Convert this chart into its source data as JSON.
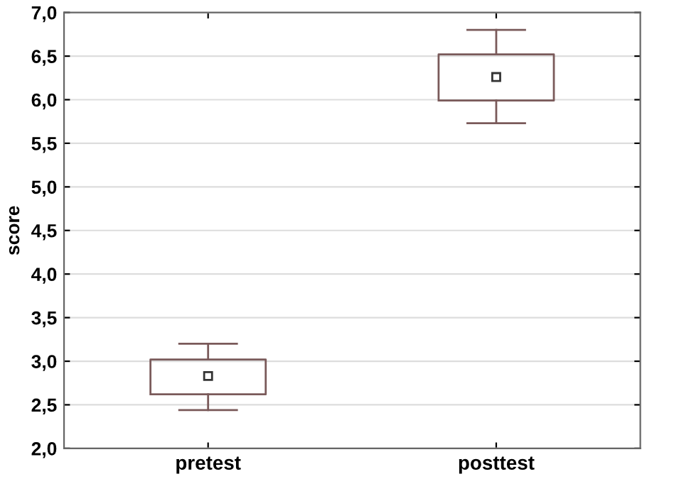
{
  "chart_data": {
    "type": "box",
    "ylabel": "score",
    "categories": [
      "pretest",
      "posttest"
    ],
    "boxes": [
      {
        "low": 2.44,
        "q1": 2.62,
        "median": 2.83,
        "q3": 3.02,
        "high": 3.2
      },
      {
        "low": 5.73,
        "q1": 5.99,
        "median": 6.26,
        "q3": 6.52,
        "high": 6.8
      }
    ],
    "color": "#7a5a5a",
    "marker": "square",
    "ylim": [
      2.0,
      7.0
    ],
    "yticks": [
      {
        "value": 2.0,
        "label": "2,0"
      },
      {
        "value": 2.5,
        "label": "2,5"
      },
      {
        "value": 3.0,
        "label": "3,0"
      },
      {
        "value": 3.5,
        "label": "3,5"
      },
      {
        "value": 4.0,
        "label": "4,0"
      },
      {
        "value": 4.5,
        "label": "4,5"
      },
      {
        "value": 5.0,
        "label": "5,0"
      },
      {
        "value": 5.5,
        "label": "5,5"
      },
      {
        "value": 6.0,
        "label": "6,0"
      },
      {
        "value": 6.5,
        "label": "6,5"
      },
      {
        "value": 7.0,
        "label": "7,0"
      }
    ],
    "grid": "y"
  }
}
